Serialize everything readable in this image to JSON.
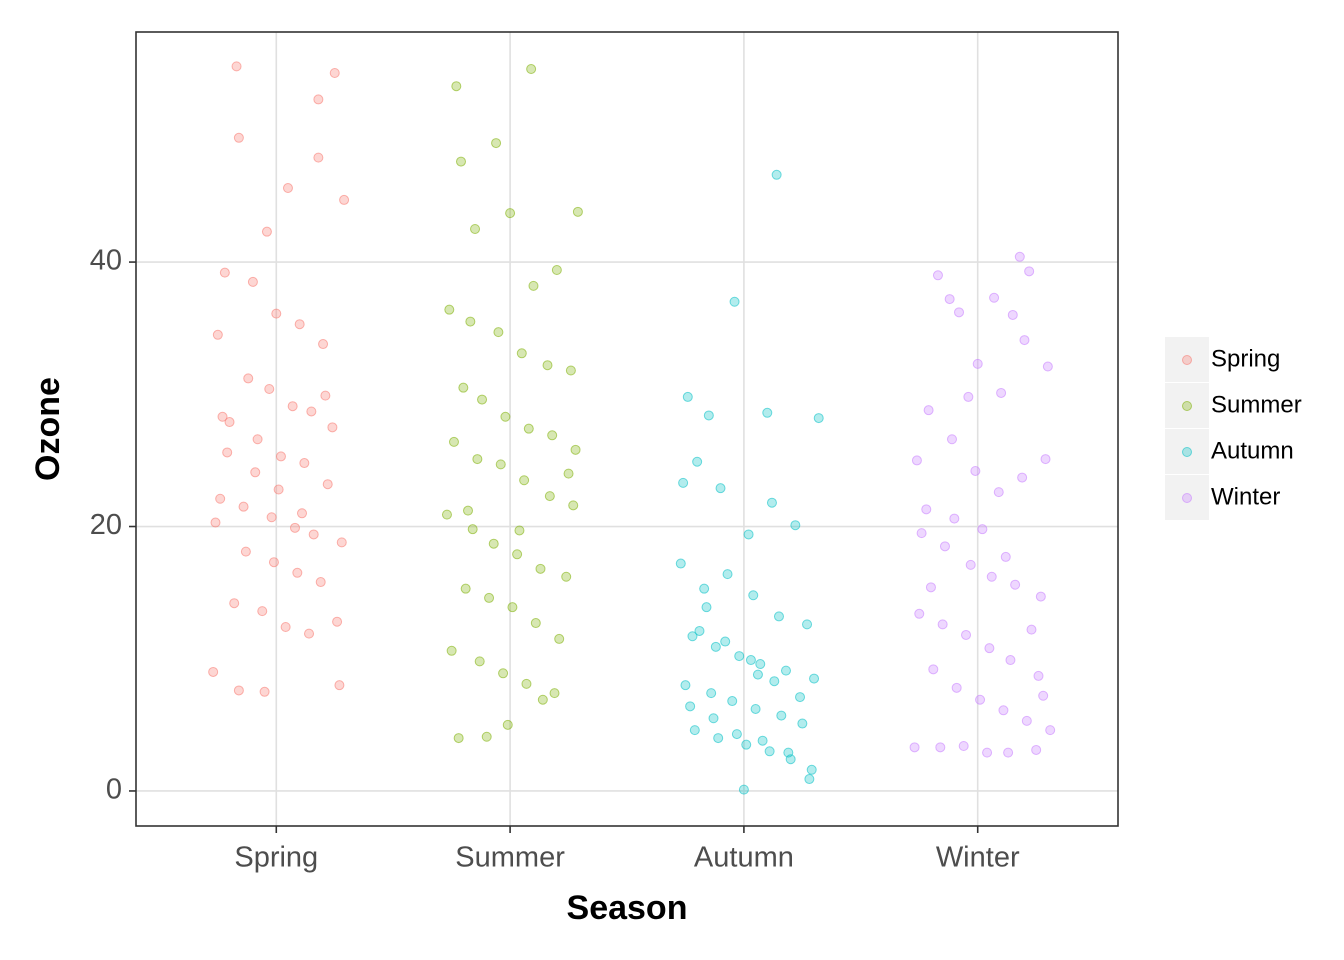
{
  "chart_data": {
    "type": "scatter",
    "x_label": "Season",
    "y_label": "Ozone",
    "xlim": [
      0.4,
      4.6
    ],
    "ylim": [
      -2.65,
      57.4
    ],
    "xticks": [
      {
        "value": 1,
        "label": "Spring"
      },
      {
        "value": 2,
        "label": "Summer"
      },
      {
        "value": 3,
        "label": "Autumn"
      },
      {
        "value": 4,
        "label": "Winter"
      }
    ],
    "yticks": [
      0,
      20,
      40
    ],
    "grid": true,
    "legend": "right",
    "series": [
      {
        "name": "Spring",
        "color": "#F8766D",
        "x": [
          0.83,
          1.25,
          0.84,
          1.18,
          1.18,
          1.29,
          1.05,
          0.84,
          0.95,
          1.27,
          0.73,
          0.78,
          0.9,
          1.0,
          1.1,
          1.2,
          0.75,
          0.88,
          0.97,
          1.07,
          1.15,
          1.24,
          0.8,
          0.92,
          1.02,
          1.12,
          1.22,
          0.76,
          0.86,
          0.98,
          1.08,
          1.16,
          1.28,
          0.74,
          0.87,
          0.99,
          1.09,
          1.19,
          0.82,
          0.94,
          1.04,
          1.14,
          1.26,
          0.79,
          0.91,
          1.01,
          1.11,
          1.21,
          0.77,
          0.96
        ],
        "values": [
          54.8,
          54.3,
          49.4,
          52.3,
          47.9,
          44.7,
          45.6,
          7.6,
          7.5,
          8.0,
          9.0,
          39.2,
          38.5,
          36.1,
          35.3,
          33.8,
          34.5,
          31.2,
          30.4,
          29.1,
          28.7,
          27.5,
          27.9,
          26.6,
          25.3,
          24.8,
          23.2,
          22.1,
          21.5,
          20.7,
          19.9,
          19.4,
          18.8,
          20.3,
          18.1,
          17.3,
          16.5,
          15.8,
          14.2,
          13.6,
          12.4,
          11.9,
          12.8,
          25.6,
          24.1,
          22.8,
          21.0,
          29.9,
          28.3,
          42.3
        ]
      },
      {
        "name": "Summer",
        "color": "#7CAE00",
        "x": [
          1.77,
          2.09,
          1.79,
          1.94,
          1.85,
          2.0,
          2.29,
          2.14,
          1.78,
          1.9,
          1.99,
          2.1,
          2.2,
          1.74,
          1.83,
          1.95,
          2.05,
          2.16,
          2.26,
          1.8,
          1.88,
          1.98,
          2.08,
          2.18,
          2.28,
          1.76,
          1.86,
          1.96,
          2.06,
          2.17,
          2.27,
          1.73,
          1.84,
          1.93,
          2.03,
          2.13,
          2.24,
          1.81,
          1.91,
          2.01,
          2.11,
          2.21,
          1.75,
          1.87,
          1.97,
          2.07,
          2.19,
          1.82,
          2.04,
          2.25
        ],
        "values": [
          53.3,
          54.6,
          47.6,
          49.0,
          42.5,
          43.7,
          43.8,
          6.9,
          4.0,
          4.1,
          5.0,
          38.2,
          39.4,
          36.4,
          35.5,
          34.7,
          33.1,
          32.2,
          31.8,
          30.5,
          29.6,
          28.3,
          27.4,
          26.9,
          25.8,
          26.4,
          25.1,
          24.7,
          23.5,
          22.3,
          21.6,
          20.9,
          19.8,
          18.7,
          17.9,
          16.8,
          16.2,
          15.3,
          14.6,
          13.9,
          12.7,
          11.5,
          10.6,
          9.8,
          8.9,
          8.1,
          7.4,
          21.2,
          19.7,
          24.0
        ]
      },
      {
        "name": "Autumn",
        "color": "#00BFC4",
        "x": [
          3.14,
          2.96,
          3.0,
          2.76,
          3.1,
          2.85,
          3.32,
          2.74,
          2.8,
          2.9,
          3.02,
          3.12,
          3.22,
          2.73,
          2.83,
          2.93,
          3.04,
          3.15,
          3.27,
          2.78,
          2.88,
          2.98,
          3.07,
          3.18,
          3.3,
          2.75,
          2.86,
          2.95,
          3.05,
          3.16,
          3.25,
          2.79,
          2.89,
          3.01,
          3.11,
          3.2,
          3.29,
          2.81,
          2.92,
          3.03,
          3.13,
          3.24,
          2.77,
          2.87,
          2.97,
          3.08,
          3.19,
          3.28,
          2.84,
          3.06
        ],
        "values": [
          46.6,
          37.0,
          0.1,
          29.8,
          28.6,
          28.4,
          28.2,
          23.3,
          24.9,
          22.9,
          19.4,
          21.8,
          20.1,
          17.2,
          15.3,
          16.4,
          14.8,
          13.2,
          12.6,
          11.7,
          10.9,
          10.2,
          9.6,
          9.1,
          8.5,
          8.0,
          7.4,
          6.8,
          6.2,
          5.7,
          5.1,
          4.6,
          4.0,
          3.5,
          3.0,
          2.4,
          1.6,
          12.1,
          11.3,
          9.9,
          8.3,
          7.1,
          6.4,
          5.5,
          4.3,
          3.8,
          2.9,
          0.9,
          13.9,
          8.8
        ]
      },
      {
        "name": "Winter",
        "color": "#C77CFF",
        "x": [
          4.18,
          3.83,
          4.22,
          3.88,
          3.92,
          4.07,
          4.15,
          3.74,
          3.78,
          3.96,
          4.0,
          4.1,
          4.2,
          4.3,
          3.73,
          3.84,
          3.94,
          4.04,
          4.13,
          4.25,
          3.79,
          3.89,
          3.99,
          4.09,
          4.19,
          4.29,
          3.76,
          3.86,
          3.97,
          4.06,
          4.16,
          4.27,
          3.75,
          3.85,
          3.95,
          4.05,
          4.14,
          4.26,
          3.81,
          3.91,
          4.01,
          4.11,
          4.21,
          4.31,
          3.8,
          3.9,
          4.02,
          4.12,
          4.23,
          4.28
        ],
        "values": [
          40.4,
          39.0,
          39.3,
          37.2,
          36.2,
          37.3,
          36.0,
          25.0,
          21.3,
          29.8,
          32.3,
          30.1,
          34.1,
          32.1,
          3.3,
          3.3,
          3.4,
          2.9,
          2.9,
          3.1,
          28.8,
          26.6,
          24.2,
          22.6,
          23.7,
          25.1,
          19.5,
          18.5,
          17.1,
          16.2,
          15.6,
          14.7,
          13.4,
          12.6,
          11.8,
          10.8,
          9.9,
          8.7,
          9.2,
          7.8,
          6.9,
          6.1,
          5.3,
          4.6,
          15.4,
          20.6,
          19.8,
          17.7,
          12.2,
          7.2
        ]
      }
    ]
  }
}
